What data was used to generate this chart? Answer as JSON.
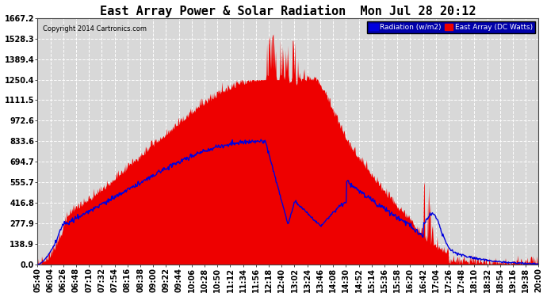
{
  "title": "East Array Power & Solar Radiation  Mon Jul 28 20:12",
  "copyright": "Copyright 2014 Cartronics.com",
  "legend_radiation": "Radiation (w/m2)",
  "legend_east": "East Array (DC Watts)",
  "ymax": 1667.2,
  "ymin": 0.0,
  "yticks": [
    0.0,
    138.9,
    277.9,
    416.8,
    555.7,
    694.7,
    833.6,
    972.6,
    1111.5,
    1250.4,
    1389.4,
    1528.3,
    1667.2
  ],
  "background_color": "#ffffff",
  "plot_background": "#d8d8d8",
  "grid_color": "#ffffff",
  "fill_color": "#ee0000",
  "line_color_radiation": "#0000dd",
  "title_fontsize": 11,
  "tick_fontsize": 7,
  "xtick_labels": [
    "05:40",
    "06:04",
    "06:26",
    "06:48",
    "07:10",
    "07:32",
    "07:54",
    "08:16",
    "08:38",
    "09:00",
    "09:22",
    "09:44",
    "10:06",
    "10:28",
    "10:50",
    "11:12",
    "11:34",
    "11:56",
    "12:18",
    "12:40",
    "13:02",
    "13:24",
    "13:46",
    "14:08",
    "14:30",
    "14:52",
    "15:14",
    "15:36",
    "15:58",
    "16:20",
    "16:42",
    "17:04",
    "17:26",
    "17:48",
    "18:10",
    "18:32",
    "18:54",
    "19:16",
    "19:38",
    "20:00"
  ],
  "legend_bg": "#0000aa",
  "legend_text_color": "#ffffff"
}
